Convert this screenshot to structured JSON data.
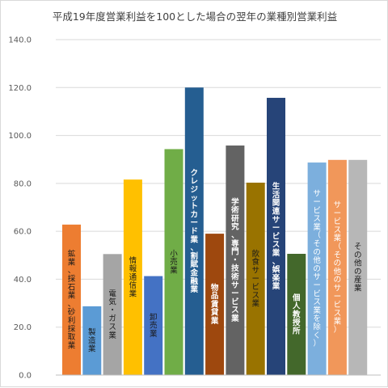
{
  "chart_data": {
    "type": "bar",
    "title": "平成19年度営業利益を100とした場合の翌年の業種別営業利益",
    "xlabel": "",
    "ylabel": "",
    "ylim": [
      0,
      140
    ],
    "yticks": [
      "0.0",
      "20.0",
      "40.0",
      "60.0",
      "80.0",
      "100.0",
      "120.0",
      "140.0"
    ],
    "grid": true,
    "legend": "none",
    "categories": [
      "鉱業、採石業、砂利採取業",
      "製造業",
      "電気・ガス業",
      "情報通信業",
      "卸売業",
      "小売業",
      "クレジットカード業、割賦金融業",
      "物品賃貸業",
      "学術研究、専門・技術サービス業",
      "飲食サービス業",
      "生活関連サービス業、娯楽業",
      "個人教授所",
      "サービス業（その他のサービス業を除く）",
      "サービス業（その他のサービス業）",
      "その他の産業"
    ],
    "values": [
      62.8,
      28.7,
      50.5,
      81.6,
      41.3,
      94.3,
      120.0,
      59.0,
      95.8,
      80.3,
      115.7,
      50.6,
      88.7,
      89.8,
      89.8
    ],
    "colors": [
      "#ED7D31",
      "#5B9BD5",
      "#A5A5A5",
      "#FFC000",
      "#4472C4",
      "#70AD47",
      "#255E91",
      "#9E480E",
      "#636363",
      "#997300",
      "#264478",
      "#43682B",
      "#7CAFDD",
      "#F1975A",
      "#B7B7B7"
    ],
    "label_colors": [
      "#1a1a1a",
      "#1a1a1a",
      "#1a1a1a",
      "#1a1a1a",
      "#1a1a1a",
      "#1a1a1a",
      "#ffffff",
      "#ffffff",
      "#ffffff",
      "#1a1a1a",
      "#ffffff",
      "#ffffff",
      "#ffffff",
      "#ffffff",
      "#1a1a1a"
    ],
    "label_bold": [
      false,
      false,
      false,
      false,
      false,
      false,
      true,
      true,
      true,
      false,
      true,
      true,
      false,
      false,
      false
    ]
  }
}
